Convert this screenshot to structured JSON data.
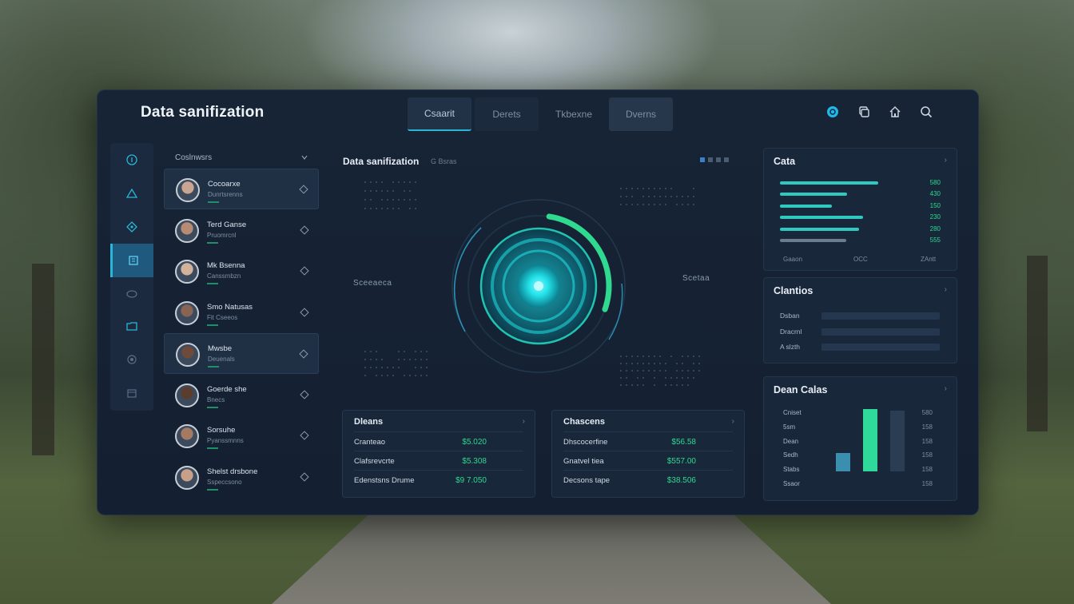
{
  "app": {
    "title": "Data sanifization"
  },
  "tabs": [
    {
      "label": "Csaarit",
      "active": true
    },
    {
      "label": "Derets",
      "active": false
    },
    {
      "label": "Tkbexne",
      "active": false
    },
    {
      "label": "Dverns",
      "active": false
    }
  ],
  "header_icons": [
    "status-dot-icon",
    "copy-icon",
    "home-icon",
    "search-icon"
  ],
  "sidebar_icons": [
    "info-icon",
    "alert-icon",
    "diamond-icon",
    "document-icon",
    "shield-icon",
    "folder-icon",
    "settings-icon",
    "archive-icon"
  ],
  "users": {
    "header": "Coslnwsrs",
    "items": [
      {
        "name": "Cocoarxe",
        "sub": "Dunrtsrenns"
      },
      {
        "name": "Terd Ganse",
        "sub": "Pruomrcnl"
      },
      {
        "name": "Mk Bsenna",
        "sub": "Canssmbzn"
      },
      {
        "name": "Smo Natusas",
        "sub": "Fit Cseeos"
      },
      {
        "name": "Mwsbe",
        "sub": "Deuenals"
      },
      {
        "name": "Goerde she",
        "sub": "Bnecs"
      },
      {
        "name": "Sorsuhe",
        "sub": "Pyanssmnns"
      },
      {
        "name": "Shelst drsbone",
        "sub": "Sspeccsono"
      }
    ]
  },
  "center": {
    "title": "Data sanifization",
    "tag": "G Bsras",
    "left_label": "Sceeaeca",
    "right_label": "Scetaa",
    "progress": 0.28
  },
  "stats_left": {
    "title": "Dleans",
    "rows": [
      {
        "label": "Cranteao",
        "value": "$5.020"
      },
      {
        "label": "Clafsrevcrte",
        "value": "$5.308"
      },
      {
        "label": "Edenstsns Drume",
        "value": "$9 7.050"
      }
    ]
  },
  "stats_right": {
    "title": "Chascens",
    "rows": [
      {
        "label": "Dhscocerfine",
        "value": "$56.58"
      },
      {
        "label": "Gnatvel tiea",
        "value": "$557.00"
      },
      {
        "label": "Decsons tape",
        "value": "$38.506"
      }
    ]
  },
  "card_data": {
    "title": "Cata",
    "bars": [
      {
        "value": "580",
        "fraction": 0.82,
        "color": "#2fc9c0"
      },
      {
        "value": "430",
        "fraction": 0.56,
        "color": "#2fc9c0"
      },
      {
        "value": "150",
        "fraction": 0.43,
        "color": "#2fc9c0"
      },
      {
        "value": "230",
        "fraction": 0.69,
        "color": "#2fc9c0"
      },
      {
        "value": "280",
        "fraction": 0.66,
        "color": "#2fc9c0"
      },
      {
        "value": "555",
        "fraction": 0.55,
        "color": "#6a7c8f"
      }
    ],
    "axis": [
      "Gaaon",
      "OCC",
      "ZAntt"
    ]
  },
  "card_chantics": {
    "title": "Clantios",
    "rows": [
      {
        "label": "Dsban"
      },
      {
        "label": "Dracrnl"
      },
      {
        "label": "A slzth"
      }
    ]
  },
  "card_dean": {
    "title": "Dean Calas",
    "labels": [
      "Cniset",
      "5sm",
      "Dean",
      "Sedh",
      "Stabs",
      "Ssaor"
    ],
    "values": [
      "580",
      "158",
      "158",
      "158",
      "158",
      "158"
    ],
    "bars": [
      {
        "fraction": 0.29,
        "color": "#3a8fae"
      },
      {
        "fraction": 1.0,
        "color": "#2fd99a"
      },
      {
        "fraction": 0.97,
        "color": "#2a3d52"
      }
    ]
  },
  "colors": {
    "accent": "#2ab6d8",
    "green": "#2fd98f",
    "panel": "#172436"
  }
}
